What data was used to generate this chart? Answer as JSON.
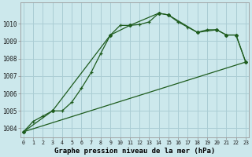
{
  "title": "Graphe pression niveau de la mer (hPa)",
  "bg_color": "#cce8ec",
  "grid_color": "#aacdd4",
  "line_color": "#1e5c1e",
  "x_ticks": [
    0,
    1,
    2,
    3,
    4,
    5,
    6,
    7,
    8,
    9,
    10,
    11,
    12,
    13,
    14,
    15,
    16,
    17,
    18,
    19,
    20,
    21,
    22,
    23
  ],
  "ylim": [
    1003.5,
    1011.2
  ],
  "yticks": [
    1004,
    1005,
    1006,
    1007,
    1008,
    1009,
    1010
  ],
  "line1_x": [
    0,
    1,
    2,
    3,
    4,
    5,
    6,
    7,
    8,
    9,
    10,
    11,
    12,
    13,
    14,
    15,
    16,
    17,
    18,
    19,
    20,
    21,
    22,
    23
  ],
  "line1_y": [
    1003.8,
    1004.4,
    1004.7,
    1005.0,
    1005.0,
    1005.5,
    1006.3,
    1007.2,
    1008.3,
    1009.35,
    1009.9,
    1009.9,
    1009.95,
    1010.1,
    1010.6,
    1010.5,
    1010.1,
    1009.8,
    1009.5,
    1009.65,
    1009.65,
    1009.35,
    1009.35,
    1007.8
  ],
  "line2_x": [
    0,
    3,
    9,
    11,
    14,
    15,
    18,
    20,
    21,
    22,
    23
  ],
  "line2_y": [
    1003.8,
    1005.0,
    1009.35,
    1009.9,
    1010.6,
    1010.5,
    1009.5,
    1009.65,
    1009.35,
    1009.35,
    1007.8
  ],
  "line3_x": [
    0,
    23
  ],
  "line3_y": [
    1003.8,
    1007.8
  ]
}
